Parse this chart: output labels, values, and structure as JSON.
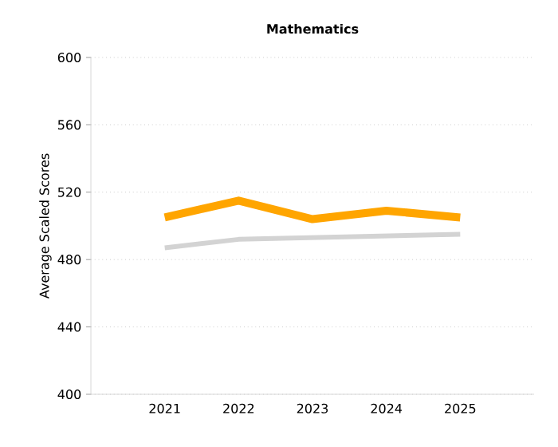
{
  "chart_data": {
    "type": "line",
    "title": "Mathematics",
    "ylabel": "Average Scaled Scores",
    "categories": [
      "2021",
      "2022",
      "2023",
      "2024",
      "2025"
    ],
    "series": [
      {
        "color": "#ffa500",
        "values": [
          505,
          515,
          504,
          509,
          505
        ]
      },
      {
        "color": "#d3d3d3",
        "values": [
          487,
          492,
          493,
          494,
          495
        ]
      }
    ],
    "ylim": [
      400,
      600
    ],
    "yticks": [
      400,
      440,
      480,
      520,
      560,
      600
    ],
    "grid": "y",
    "marker": "none",
    "line_style": "solid"
  }
}
